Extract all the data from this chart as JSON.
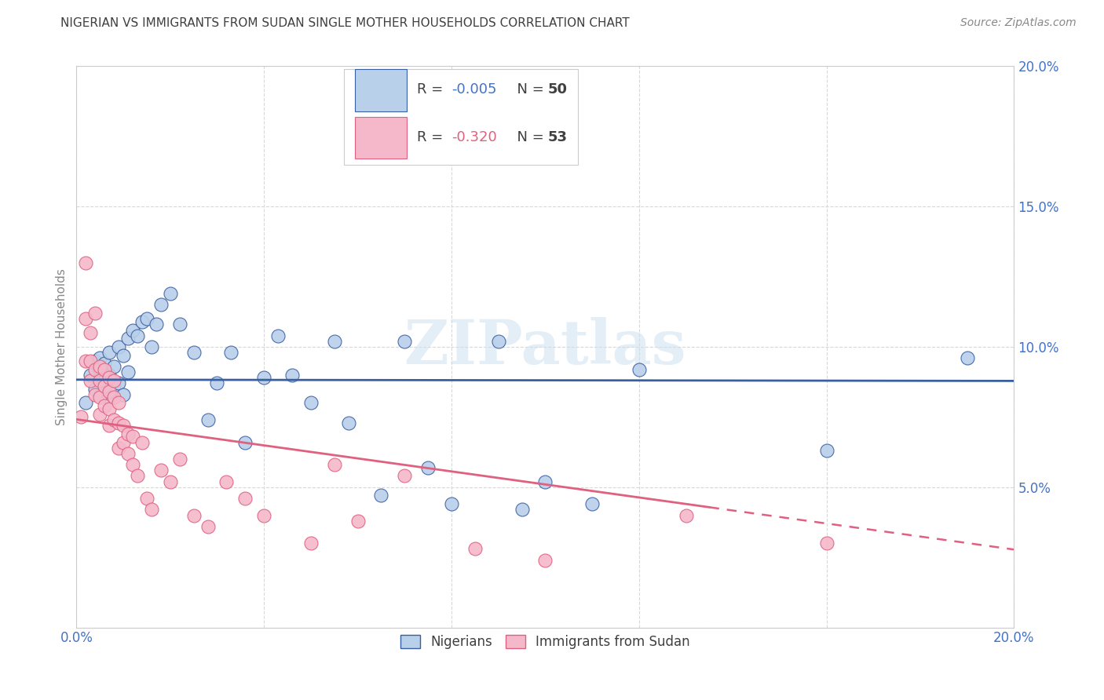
{
  "title": "NIGERIAN VS IMMIGRANTS FROM SUDAN SINGLE MOTHER HOUSEHOLDS CORRELATION CHART",
  "source": "Source: ZipAtlas.com",
  "ylabel": "Single Mother Households",
  "watermark": "ZIPatlas",
  "xlim": [
    0.0,
    0.2
  ],
  "ylim": [
    0.0,
    0.2
  ],
  "xticks": [
    0.0,
    0.04,
    0.08,
    0.12,
    0.16,
    0.2
  ],
  "yticks": [
    0.0,
    0.05,
    0.1,
    0.15,
    0.2
  ],
  "nigerians_R": -0.005,
  "nigerians_N": 50,
  "sudan_R": -0.32,
  "sudan_N": 53,
  "scatter_color_nigerians": "#b8d0ea",
  "scatter_color_sudan": "#f4b8ca",
  "line_color_nigerians": "#3a5fa0",
  "line_color_sudan": "#e06080",
  "background_color": "#ffffff",
  "grid_color": "#d8d8d8",
  "title_color": "#404040",
  "tick_color": "#4472c4",
  "legend_r1_color": "#4472c4",
  "legend_r2_color": "#e06080",
  "legend_n_color": "#404040",
  "nigerians_x": [
    0.002,
    0.003,
    0.004,
    0.004,
    0.005,
    0.005,
    0.006,
    0.006,
    0.007,
    0.007,
    0.007,
    0.008,
    0.008,
    0.009,
    0.009,
    0.01,
    0.01,
    0.011,
    0.011,
    0.012,
    0.013,
    0.014,
    0.015,
    0.016,
    0.017,
    0.018,
    0.02,
    0.022,
    0.025,
    0.028,
    0.03,
    0.033,
    0.036,
    0.04,
    0.043,
    0.046,
    0.05,
    0.055,
    0.058,
    0.065,
    0.07,
    0.075,
    0.08,
    0.09,
    0.095,
    0.1,
    0.11,
    0.12,
    0.16,
    0.19
  ],
  "nigerians_y": [
    0.08,
    0.09,
    0.085,
    0.095,
    0.092,
    0.096,
    0.088,
    0.094,
    0.082,
    0.09,
    0.098,
    0.086,
    0.093,
    0.1,
    0.087,
    0.097,
    0.083,
    0.103,
    0.091,
    0.106,
    0.104,
    0.109,
    0.11,
    0.1,
    0.108,
    0.115,
    0.119,
    0.108,
    0.098,
    0.074,
    0.087,
    0.098,
    0.066,
    0.089,
    0.104,
    0.09,
    0.08,
    0.102,
    0.073,
    0.047,
    0.102,
    0.057,
    0.044,
    0.102,
    0.042,
    0.052,
    0.044,
    0.092,
    0.063,
    0.096
  ],
  "sudan_x": [
    0.001,
    0.002,
    0.002,
    0.002,
    0.003,
    0.003,
    0.003,
    0.004,
    0.004,
    0.004,
    0.005,
    0.005,
    0.005,
    0.005,
    0.006,
    0.006,
    0.006,
    0.007,
    0.007,
    0.007,
    0.007,
    0.008,
    0.008,
    0.008,
    0.009,
    0.009,
    0.009,
    0.01,
    0.01,
    0.011,
    0.011,
    0.012,
    0.012,
    0.013,
    0.014,
    0.015,
    0.016,
    0.018,
    0.02,
    0.022,
    0.025,
    0.028,
    0.032,
    0.036,
    0.04,
    0.05,
    0.055,
    0.06,
    0.07,
    0.085,
    0.1,
    0.13,
    0.16
  ],
  "sudan_y": [
    0.075,
    0.13,
    0.095,
    0.11,
    0.105,
    0.095,
    0.088,
    0.112,
    0.092,
    0.083,
    0.093,
    0.088,
    0.082,
    0.076,
    0.092,
    0.086,
    0.079,
    0.089,
    0.084,
    0.078,
    0.072,
    0.088,
    0.082,
    0.074,
    0.08,
    0.073,
    0.064,
    0.072,
    0.066,
    0.069,
    0.062,
    0.068,
    0.058,
    0.054,
    0.066,
    0.046,
    0.042,
    0.056,
    0.052,
    0.06,
    0.04,
    0.036,
    0.052,
    0.046,
    0.04,
    0.03,
    0.058,
    0.038,
    0.054,
    0.028,
    0.024,
    0.04,
    0.03
  ]
}
